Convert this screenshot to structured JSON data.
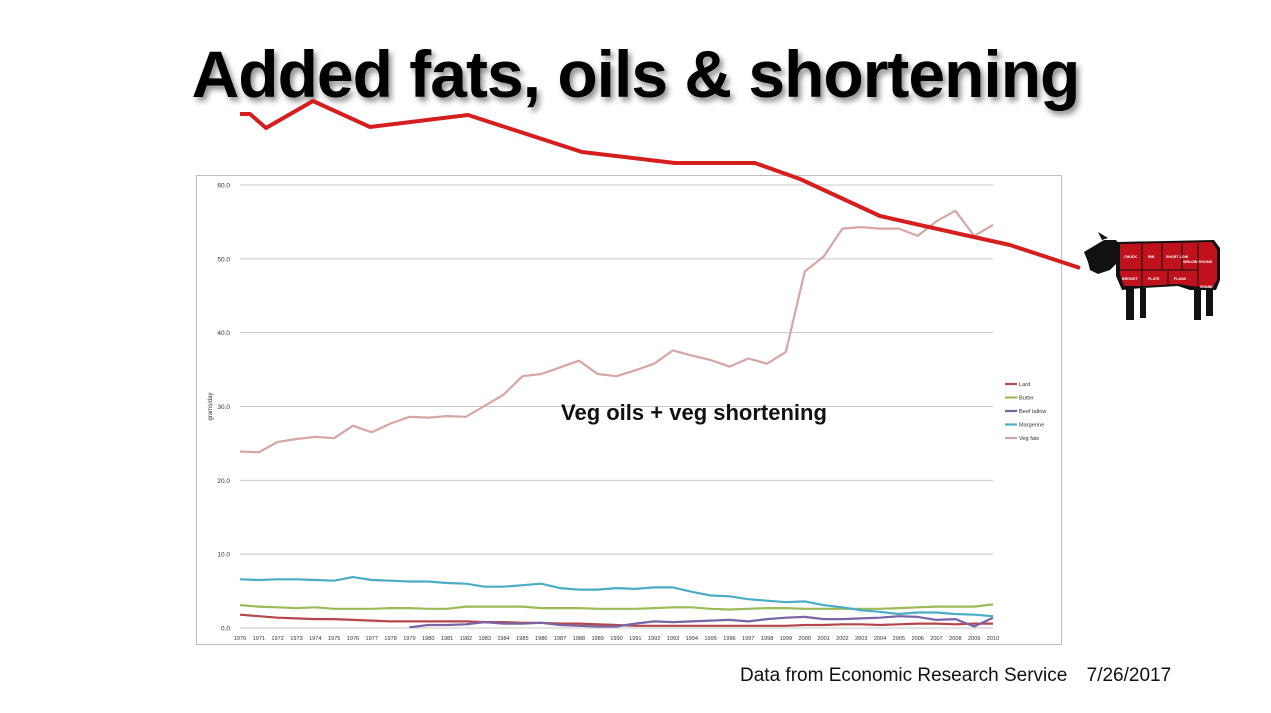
{
  "title": "Added fats, oils & shortening",
  "annotation": "Veg oils + veg shortening",
  "source": "Data from Economic Research Service",
  "date": "7/26/2017",
  "colors": {
    "Lard": "#b5474b",
    "Butter": "#9bbb59",
    "Beef tallow": "#7a64a6",
    "Margerine": "#4bacc6",
    "Veg fats": "#d6a6a4",
    "trend": "#d61e1e",
    "cow_body": "#111111",
    "cow_cuts": "#c0121c"
  },
  "cow_cut_labels": [
    "CHUCK",
    "RIB",
    "SHORT LOIN",
    "SIRLOIN",
    "ROUND",
    "BRISKET",
    "PLATE",
    "FLANK",
    "SHANK"
  ],
  "chart_data": {
    "type": "line",
    "title": "",
    "xlabel": "",
    "ylabel": "grams/day",
    "ylim": [
      0,
      60
    ],
    "yticks": [
      "0.0",
      "10.0",
      "20.0",
      "30.0",
      "40.0",
      "50.0",
      "60.0"
    ],
    "x": [
      "1970",
      "1971",
      "1972",
      "1973",
      "1974",
      "1975",
      "1976",
      "1977",
      "1978",
      "1979",
      "1980",
      "1981",
      "1982",
      "1983",
      "1984",
      "1985",
      "1986",
      "1987",
      "1988",
      "1989",
      "1990",
      "1991",
      "1992",
      "1993",
      "1994",
      "1995",
      "1996",
      "1997",
      "1998",
      "1999",
      "2000",
      "2001",
      "2002",
      "2003",
      "2004",
      "2005",
      "2006",
      "2007",
      "2008",
      "2009",
      "2010"
    ],
    "legend_position": "right",
    "grid": true,
    "series": [
      {
        "name": "Lard",
        "values": [
          1.8,
          1.6,
          1.4,
          1.3,
          1.2,
          1.2,
          1.1,
          1.0,
          0.9,
          0.9,
          0.9,
          0.9,
          0.9,
          0.8,
          0.8,
          0.7,
          0.7,
          0.6,
          0.6,
          0.5,
          0.4,
          0.3,
          0.3,
          0.3,
          0.3,
          0.3,
          0.3,
          0.3,
          0.3,
          0.3,
          0.4,
          0.4,
          0.5,
          0.5,
          0.4,
          0.5,
          0.6,
          0.6,
          0.5,
          0.6,
          0.6
        ]
      },
      {
        "name": "Butter",
        "values": [
          3.1,
          2.9,
          2.8,
          2.7,
          2.8,
          2.6,
          2.6,
          2.6,
          2.7,
          2.7,
          2.6,
          2.6,
          2.9,
          2.9,
          2.9,
          2.9,
          2.7,
          2.7,
          2.7,
          2.6,
          2.6,
          2.6,
          2.7,
          2.8,
          2.8,
          2.6,
          2.5,
          2.6,
          2.7,
          2.7,
          2.6,
          2.6,
          2.6,
          2.6,
          2.6,
          2.7,
          2.8,
          2.9,
          2.9,
          2.9,
          3.2
        ]
      },
      {
        "name": "Beef tallow",
        "values": [
          null,
          null,
          null,
          null,
          null,
          null,
          null,
          null,
          null,
          0.1,
          0.4,
          0.4,
          0.5,
          0.8,
          0.6,
          0.6,
          0.7,
          0.4,
          0.3,
          0.2,
          0.2,
          0.6,
          0.9,
          0.8,
          0.9,
          1.0,
          1.1,
          0.9,
          1.2,
          1.4,
          1.5,
          1.2,
          1.2,
          1.3,
          1.4,
          1.6,
          1.5,
          1.1,
          1.2,
          0.2,
          1.4
        ]
      },
      {
        "name": "Margerine",
        "values": [
          6.6,
          6.5,
          6.6,
          6.6,
          6.5,
          6.4,
          6.9,
          6.5,
          6.4,
          6.3,
          6.3,
          6.1,
          6.0,
          5.6,
          5.6,
          5.8,
          6.0,
          5.4,
          5.2,
          5.2,
          5.4,
          5.3,
          5.5,
          5.5,
          4.9,
          4.4,
          4.3,
          3.9,
          3.7,
          3.5,
          3.6,
          3.1,
          2.8,
          2.4,
          2.2,
          1.9,
          2.1,
          2.1,
          1.9,
          1.8,
          1.6
        ]
      },
      {
        "name": "Veg fats",
        "values": [
          23.9,
          23.8,
          25.2,
          25.6,
          25.9,
          25.7,
          27.4,
          26.5,
          27.7,
          28.6,
          28.5,
          28.7,
          28.6,
          30.1,
          31.6,
          34.1,
          34.4,
          35.3,
          36.2,
          34.4,
          34.1,
          34.9,
          35.8,
          37.6,
          36.9,
          36.3,
          35.4,
          36.5,
          35.8,
          37.4,
          48.3,
          50.3,
          54.1,
          54.3,
          54.1,
          54.1,
          53.1,
          55.1,
          56.5,
          53.1,
          54.6
        ]
      }
    ]
  }
}
